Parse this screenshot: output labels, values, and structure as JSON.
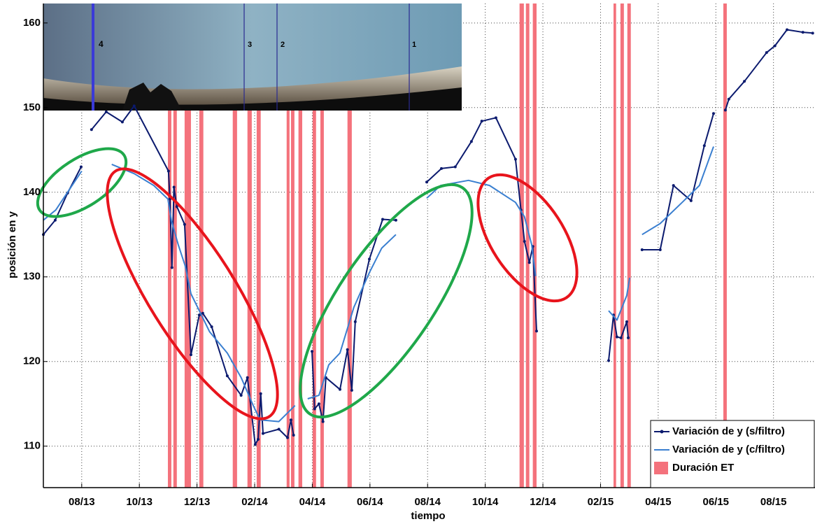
{
  "chart_data": {
    "type": "line",
    "xlabel": "tiempo",
    "ylabel": "posición en y",
    "xlim": [
      5.67,
      32.44
    ],
    "ylim": [
      105.1,
      162.3
    ],
    "xticks": [
      {
        "value": 7,
        "label": "08/13"
      },
      {
        "value": 9,
        "label": "10/13"
      },
      {
        "value": 11,
        "label": "12/13"
      },
      {
        "value": 13,
        "label": "02/14"
      },
      {
        "value": 15,
        "label": "04/14"
      },
      {
        "value": 17,
        "label": "06/14"
      },
      {
        "value": 19,
        "label": "08/14"
      },
      {
        "value": 21,
        "label": "10/14"
      },
      {
        "value": 23,
        "label": "12/14"
      },
      {
        "value": 25,
        "label": "02/15"
      },
      {
        "value": 27,
        "label": "04/15"
      },
      {
        "value": 29,
        "label": "06/15"
      },
      {
        "value": 31,
        "label": "08/15"
      }
    ],
    "yticks": [
      110,
      120,
      130,
      140,
      150,
      160
    ],
    "grid": true,
    "legend": "lower right",
    "annotations": [
      "4",
      "3",
      "2",
      "1"
    ],
    "series": [
      {
        "name": "Variación de y (s/filtro)",
        "color": "#0b1a6e",
        "markers": true,
        "x": [
          5.67,
          6.08,
          6.51,
          6.98,
          null,
          7.34,
          7.85,
          8.41,
          8.82,
          10.01,
          10.06,
          10.13,
          10.2,
          10.3,
          10.57,
          10.79,
          11.08,
          11.2,
          11.51,
          12.05,
          12.53,
          12.75,
          13.02,
          13.12,
          13.21,
          13.29,
          13.84,
          14.14,
          14.26,
          14.35,
          null,
          14.99,
          15.08,
          15.23,
          15.37,
          15.47,
          15.96,
          16.22,
          16.37,
          16.49,
          16.98,
          17.44,
          17.9,
          null,
          18.97,
          19.48,
          19.96,
          20.52,
          20.88,
          21.37,
          22.05,
          22.24,
          22.36,
          22.53,
          22.65,
          22.78,
          null,
          25.28,
          25.45,
          25.57,
          25.71,
          25.91,
          25.96,
          null,
          26.44,
          27.07,
          27.53,
          28.14,
          28.6,
          28.92,
          null,
          29.33,
          29.45,
          29.99,
          30.76,
          31.05,
          31.47,
          32.02,
          32.36
        ],
        "values": [
          135.0,
          136.7,
          139.9,
          143.0,
          null,
          147.4,
          149.5,
          148.3,
          150.2,
          142.5,
          139.2,
          131.1,
          140.6,
          138.3,
          136.2,
          120.8,
          125.5,
          125.7,
          124.1,
          118.3,
          116.0,
          118.1,
          110.2,
          110.8,
          116.2,
          111.5,
          112.0,
          111.0,
          113.1,
          111.3,
          null,
          121.2,
          114.4,
          115.0,
          112.9,
          118.1,
          116.7,
          121.4,
          116.6,
          124.7,
          132.1,
          136.8,
          136.7,
          null,
          141.2,
          142.8,
          143.0,
          146.0,
          148.4,
          148.8,
          143.9,
          137.9,
          134.2,
          131.7,
          133.6,
          123.6,
          null,
          120.1,
          125.5,
          122.9,
          122.8,
          124.7,
          122.8,
          null,
          133.2,
          133.2,
          140.8,
          139.0,
          145.5,
          149.3,
          null,
          149.7,
          151.0,
          153.1,
          156.5,
          157.3,
          159.2,
          158.9,
          158.8
        ]
      },
      {
        "name": "Variación de y (c/filtro)",
        "color": "#3a7fd0",
        "markers": false,
        "x": [
          5.67,
          6.1,
          6.51,
          7.0,
          null,
          8.04,
          8.82,
          9.5,
          9.99,
          10.11,
          10.35,
          10.59,
          10.79,
          11.08,
          11.44,
          12.05,
          12.53,
          12.95,
          13.19,
          13.84,
          14.4,
          null,
          14.84,
          15.23,
          15.57,
          15.96,
          16.44,
          16.98,
          17.41,
          17.9,
          null,
          18.97,
          19.45,
          20.42,
          21.15,
          22.05,
          22.36,
          22.61,
          22.75,
          null,
          25.28,
          25.57,
          25.91,
          26.01,
          null,
          26.44,
          27.07,
          27.83,
          28.43,
          28.92
        ],
        "values": [
          136.7,
          137.9,
          140.0,
          142.5,
          null,
          143.3,
          142.2,
          140.8,
          139.2,
          136.7,
          133.8,
          131.3,
          128.0,
          126.0,
          123.5,
          121.0,
          118.1,
          114.8,
          113.1,
          112.9,
          114.8,
          null,
          115.6,
          116.0,
          119.6,
          121.0,
          126.4,
          130.5,
          133.4,
          135.0,
          null,
          139.3,
          140.8,
          141.4,
          140.8,
          138.8,
          137.1,
          133.8,
          130.1,
          null,
          126.0,
          124.9,
          127.8,
          129.9,
          null,
          135.0,
          136.3,
          138.8,
          140.8,
          145.4
        ]
      },
      {
        "name": "Duración ET",
        "color": "#f4727c",
        "spans": [
          [
            9.99,
            10.11
          ],
          [
            10.18,
            10.3
          ],
          [
            10.57,
            10.79
          ],
          [
            11.08,
            11.22
          ],
          [
            12.24,
            12.39
          ],
          [
            12.75,
            12.9
          ],
          [
            13.07,
            13.21
          ],
          [
            14.11,
            14.21
          ],
          [
            14.26,
            14.38
          ],
          [
            14.52,
            14.65
          ],
          [
            15.01,
            15.13
          ],
          [
            15.28,
            15.4
          ],
          [
            16.22,
            16.37
          ],
          [
            22.19,
            22.34
          ],
          [
            22.41,
            22.53
          ],
          [
            22.65,
            22.78
          ],
          [
            25.45,
            25.54
          ],
          [
            25.69,
            25.81
          ],
          [
            25.93,
            26.05
          ],
          [
            29.26,
            29.38
          ]
        ]
      }
    ]
  }
}
